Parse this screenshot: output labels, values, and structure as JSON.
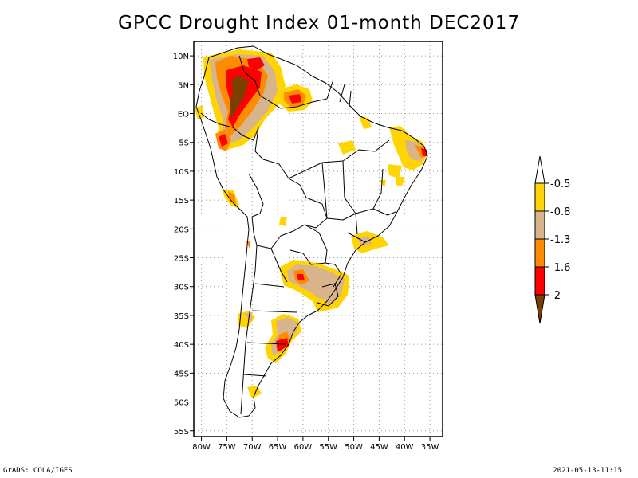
{
  "title": "GPCC Drought Index 01-month DEC2017",
  "footer": {
    "left": "GrADS: COLA/IGES",
    "right": "2021-05-13-11:15"
  },
  "axes": {
    "lat_labels": [
      "10N",
      "5N",
      "EQ",
      "5S",
      "10S",
      "15S",
      "20S",
      "25S",
      "30S",
      "35S",
      "40S",
      "45S",
      "50S",
      "55S"
    ],
    "lat_values": [
      10,
      5,
      0,
      -5,
      -10,
      -15,
      -20,
      -25,
      -30,
      -35,
      -40,
      -45,
      -50,
      -55
    ],
    "lon_labels": [
      "80W",
      "75W",
      "70W",
      "65W",
      "60W",
      "55W",
      "50W",
      "45W",
      "40W",
      "35W"
    ],
    "lon_values": [
      -80,
      -75,
      -70,
      -65,
      -60,
      -55,
      -50,
      -45,
      -40,
      -35
    ],
    "lat_range": [
      -56,
      12.5
    ],
    "lon_range": [
      -81.5,
      -32.5
    ]
  },
  "legend": {
    "labels": [
      "-0.5",
      "-0.8",
      "-1.3",
      "-1.6",
      "-2"
    ],
    "colors": [
      "#ffffff",
      "#ffd400",
      "#d7b48c",
      "#ff8c00",
      "#ff0000",
      "#7b3f00"
    ]
  },
  "colors": {
    "yellow": "#ffd400",
    "tan": "#d7b48c",
    "orange": "#ff8c00",
    "red": "#ff0000",
    "brown": "#7b3f00"
  }
}
